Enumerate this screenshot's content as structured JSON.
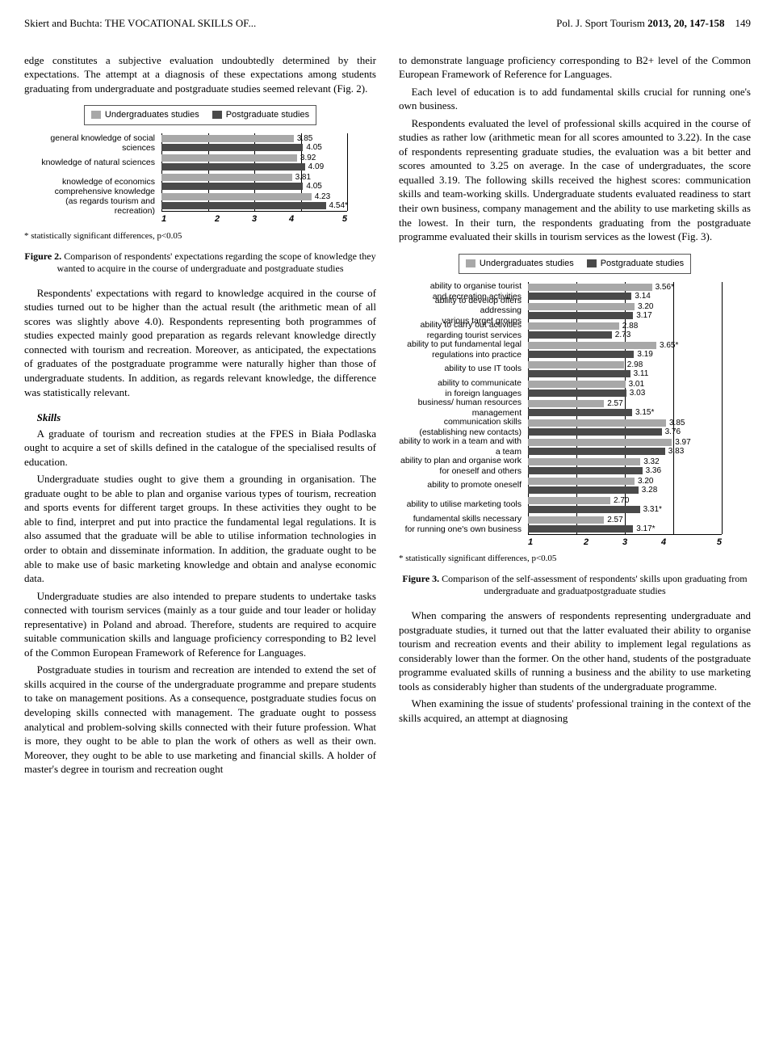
{
  "header": {
    "left": "Skiert and Buchta: THE VOCATIONAL SKILLS OF...",
    "right_journal": "Pol. J. Sport Tourism ",
    "right_issue": "2013, 20, 147-158",
    "page": "149"
  },
  "colors": {
    "undergrad": "#a8a8a8",
    "postgrad": "#4a4a4a",
    "grid": "#000000"
  },
  "legend": {
    "undergrad": "Undergraduates studies",
    "postgrad": "Postgraduate studies"
  },
  "fig2": {
    "axis_min": 1,
    "axis_max": 5,
    "ticks": [
      "1",
      "2",
      "3",
      "4",
      "5"
    ],
    "rows": [
      {
        "label": "general knowledge of social sciences",
        "u": 3.85,
        "u_txt": "3.85",
        "p": 4.05,
        "p_txt": "4.05"
      },
      {
        "label": "knowledge of natural sciences",
        "u": 3.92,
        "u_txt": "3.92",
        "p": 4.09,
        "p_txt": "4.09"
      },
      {
        "label": "knowledge of economics",
        "u": 3.81,
        "u_txt": "3.81",
        "p": 4.05,
        "p_txt": "4.05"
      },
      {
        "label": "comprehensive knowledge\n(as regards tourism and recreation)",
        "u": 4.23,
        "u_txt": "4.23",
        "p": 4.54,
        "p_txt": "4.54*"
      }
    ],
    "footnote": "* statistically significant differences, p<0.05",
    "caption_label": "Figure 2.",
    "caption": " Comparison of respondents' expectations regarding the scope of knowledge they wanted to acquire in the course of undergraduate and postgraduate studies"
  },
  "fig3": {
    "axis_min": 1,
    "axis_max": 5,
    "ticks": [
      "1",
      "2",
      "3",
      "4",
      "5"
    ],
    "rows": [
      {
        "label": "ability to organise tourist\nand recreation activities",
        "u": 3.56,
        "u_txt": "3.56*",
        "p": 3.14,
        "p_txt": "3.14"
      },
      {
        "label": "ability to develop offers addressing\nvarious target groups",
        "u": 3.2,
        "u_txt": "3.20",
        "p": 3.17,
        "p_txt": "3.17"
      },
      {
        "label": "ability to carry out activities\nregarding tourist services",
        "u": 2.88,
        "u_txt": "2.88",
        "p": 2.73,
        "p_txt": "2.73"
      },
      {
        "label": "ability to put fundamental legal\nregulations into practice",
        "u": 3.65,
        "u_txt": "3.65*",
        "p": 3.19,
        "p_txt": "3.19"
      },
      {
        "label": "ability to use IT tools",
        "u": 2.98,
        "u_txt": "2.98",
        "p": 3.11,
        "p_txt": "3.11"
      },
      {
        "label": "ability to communicate\nin foreign languages",
        "u": 3.01,
        "u_txt": "3.01",
        "p": 3.03,
        "p_txt": "3.03"
      },
      {
        "label": "business/ human resources management",
        "u": 2.57,
        "u_txt": "2.57",
        "p": 3.15,
        "p_txt": "3.15*"
      },
      {
        "label": "communication skills\n(establishing new contacts)",
        "u": 3.85,
        "u_txt": "3.85",
        "p": 3.76,
        "p_txt": "3.76"
      },
      {
        "label": "ability to work in a team and with a team",
        "u": 3.97,
        "u_txt": "3.97",
        "p": 3.83,
        "p_txt": "3.83"
      },
      {
        "label": "ability to plan and organise work\nfor oneself and others",
        "u": 3.32,
        "u_txt": "3.32",
        "p": 3.36,
        "p_txt": "3.36"
      },
      {
        "label": "ability to promote oneself",
        "u": 3.2,
        "u_txt": "3.20",
        "p": 3.28,
        "p_txt": "3.28"
      },
      {
        "label": "ability to utilise marketing tools",
        "u": 2.7,
        "u_txt": "2.70",
        "p": 3.31,
        "p_txt": "3.31*"
      },
      {
        "label": "fundamental skills necessary\nfor running one's own business",
        "u": 2.57,
        "u_txt": "2.57",
        "p": 3.17,
        "p_txt": "3.17*"
      }
    ],
    "footnote": "* statistically significant differences, p<0.05",
    "caption_label": "Figure 3.",
    "caption": " Comparison of the self-assessment of respondents' skills upon graduating from undergraduate and graduatpostgraduate studies"
  },
  "text": {
    "left": {
      "p1": "edge constitutes a subjective evaluation undoubtedly determined by their expectations. The attempt at a diagnosis of these expectations among students graduating from undergraduate and postgraduate studies seemed relevant (Fig. 2).",
      "p2": "Respondents' expectations with regard to knowledge acquired in the course of studies turned out to be higher than the actual result (the arithmetic mean of all scores was slightly above 4.0). Respondents representing both programmes of studies expected mainly good preparation as regards relevant knowledge directly connected with tourism and recreation. Moreover, as anticipated, the expectations of graduates of the postgraduate programme were naturally higher than those of undergraduate students. In addition, as regards relevant knowledge, the difference was statistically relevant.",
      "skills_head": "Skills",
      "p3": "A graduate of tourism and recreation studies at the FPES in Biała Podlaska ought to acquire a set of skills defined in the catalogue of the specialised results of education.",
      "p4": "Undergraduate studies ought to give them a grounding in organisation. The graduate ought to be able to plan and organise various types of tourism, recreation and sports events for different target groups. In these activities they ought to be able to find, interpret and put into practice the fundamental legal regulations. It is also assumed that the graduate will be able to utilise information technologies in order to obtain and disseminate information. In addition, the graduate ought to be able to make use of basic marketing knowledge and obtain and analyse economic data.",
      "p5": "Undergraduate studies are also intended to prepare students to undertake tasks connected with tourism services (mainly as a tour guide and tour leader or holiday representative) in Poland and abroad. Therefore, students are required to acquire suitable communication skills and language proficiency corresponding to B2 level of the Common European Framework of Reference for Languages.",
      "p6": "Postgraduate studies in tourism and recreation are intended to extend the set of skills acquired in the course of the undergraduate programme and prepare students to take on management positions. As a consequence, postgraduate studies focus on developing skills connected with management. The graduate ought to possess analytical and problem-solving skills connected with their future profession. What is more, they ought to be able to plan the work of others as well as their own. Moreover, they ought to be able to use marketing and financial skills. A holder of master's degree in tourism and recreation ought"
    },
    "right": {
      "p1": "to demonstrate language proficiency corresponding to B2+ level of the Common European Framework of Reference for Languages.",
      "p2": "Each level of education is to add fundamental skills crucial for running one's own business.",
      "p3": "Respondents evaluated the level of professional skills acquired in the course of studies as rather low (arithmetic mean for all scores amounted to 3.22). In the case of respondents representing graduate studies, the evaluation was a bit better and scores amounted to 3.25 on average. In the case of undergraduates, the score equalled 3.19. The following skills received the highest scores: communication skills and team-working skills. Undergraduate students evaluated readiness to start their own business, company management and the ability to use marketing skills as the lowest. In their turn, the respondents graduating from the postgraduate programme evaluated their skills in tourism services as the lowest (Fig. 3).",
      "p4": "When comparing the answers of respondents representing undergraduate and postgraduate studies, it turned out that the latter evaluated their ability to organise tourism and recreation events and their ability to implement legal regulations as considerably lower than the former. On the other hand, students of the postgraduate programme evaluated skills of running a business and the ability to use marketing tools as considerably higher than students of the undergraduate programme.",
      "p5": "When examining the issue of students' professional training in the context of the skills acquired, an attempt at diagnosing"
    }
  }
}
